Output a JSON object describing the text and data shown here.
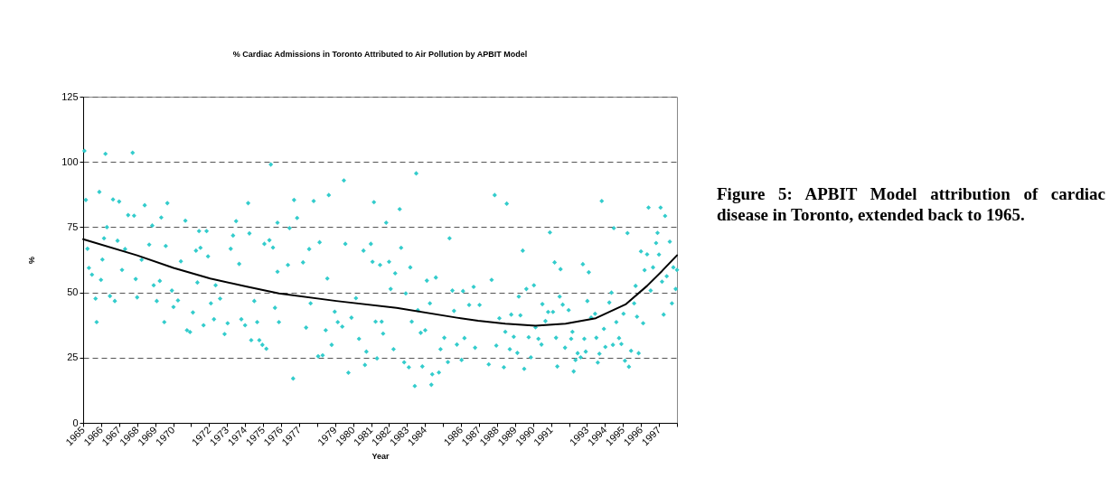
{
  "chart_data": {
    "type": "scatter",
    "title": "% Cardiac Admissions in Toronto Attributed to Air Pollution by APBIT Model",
    "xlabel": "Year",
    "ylabel": "%",
    "xlim": [
      1965,
      1998
    ],
    "ylim": [
      0,
      125
    ],
    "yticks": [
      0,
      25,
      50,
      75,
      100,
      125
    ],
    "xticks": [
      1965,
      1966,
      1967,
      1968,
      1969,
      1970,
      {
        "value": 1971,
        "label": null
      },
      1972,
      1973,
      1974,
      1975,
      1976,
      1977,
      {
        "value": 1978,
        "label": null
      },
      1979,
      1980,
      1981,
      1982,
      1983,
      1984,
      {
        "value": 1985,
        "label": null
      },
      1986,
      1987,
      1988,
      1989,
      1990,
      1991,
      {
        "value": 1992,
        "label": null
      },
      1993,
      1994,
      1995,
      1996,
      1997,
      {
        "value": 1998,
        "label": null
      }
    ],
    "grid": "y",
    "annotations": [
      "Figure 5: APBIT Model attribution of cardiac disease in Toronto, extended back to 1965."
    ],
    "series": [
      {
        "color": "#33cccc",
        "marker": "diamond",
        "x": [
          1965.07,
          1965.15,
          1965.24,
          1965.32,
          1965.49,
          1965.69,
          1965.75,
          1965.9,
          1965.99,
          1966.24,
          1966.32,
          1966.16,
          1966.07,
          1966.49,
          1966.66,
          1966.76,
          1967.0,
          1966.91,
          1967.16,
          1967.33,
          1967.5,
          1967.75,
          1967.83,
          1967.92,
          1968.0,
          1968.25,
          1968.42,
          1968.67,
          1968.84,
          1968.92,
          1969.09,
          1969.26,
          1969.34,
          1969.51,
          1969.59,
          1969.68,
          1969.93,
          1970.02,
          1970.27,
          1970.43,
          1970.68,
          1970.77,
          1970.94,
          1971.1,
          1971.27,
          1971.44,
          1971.52,
          1971.35,
          1971.69,
          1971.86,
          1971.94,
          1972.1,
          1972.27,
          1972.36,
          1972.61,
          1972.86,
          1973.03,
          1973.2,
          1973.33,
          1973.5,
          1973.67,
          1973.79,
          1974.0,
          1974.17,
          1974.24,
          1974.34,
          1974.51,
          1974.67,
          1974.79,
          1974.96,
          1975.18,
          1975.07,
          1975.35,
          1975.43,
          1975.55,
          1975.66,
          1975.8,
          1975.88,
          1975.8,
          1976.47,
          1976.72,
          1976.67,
          1976.89,
          1976.38,
          1977.22,
          1977.56,
          1977.64,
          1977.81,
          1977.39,
          1978.06,
          1978.14,
          1978.31,
          1978.48,
          1978.57,
          1978.65,
          1978.81,
          1978.98,
          1979.15,
          1979.4,
          1979.49,
          1979.57,
          1979.74,
          1979.91,
          1980.16,
          1980.33,
          1980.58,
          1980.66,
          1980.74,
          1980.99,
          1981.16,
          1981.08,
          1981.25,
          1981.33,
          1981.5,
          1981.59,
          1981.67,
          1981.84,
          1982.0,
          1982.09,
          1982.25,
          1982.34,
          1982.59,
          1982.67,
          1982.84,
          1982.93,
          1983.1,
          1983.18,
          1983.26,
          1983.43,
          1983.51,
          1983.6,
          1983.76,
          1983.85,
          1984.01,
          1984.1,
          1984.27,
          1984.35,
          1984.4,
          1984.6,
          1984.77,
          1984.86,
          1985.07,
          1985.27,
          1985.36,
          1985.52,
          1985.61,
          1985.77,
          1986.03,
          1986.11,
          1986.19,
          1986.45,
          1986.7,
          1986.78,
          1987.03,
          1987.54,
          1987.7,
          1987.87,
          1987.96,
          1988.13,
          1988.38,
          1988.46,
          1988.54,
          1988.71,
          1988.79,
          1988.93,
          1989.13,
          1989.21,
          1989.3,
          1989.43,
          1989.51,
          1989.63,
          1989.76,
          1989.88,
          1990.05,
          1990.14,
          1990.3,
          1990.47,
          1990.52,
          1990.69,
          1990.84,
          1990.94,
          1991.11,
          1991.2,
          1991.28,
          1991.35,
          1991.48,
          1991.53,
          1991.65,
          1991.78,
          1991.98,
          1992.12,
          1992.19,
          1992.26,
          1992.36,
          1992.48,
          1992.65,
          1992.77,
          1992.85,
          1992.93,
          1993.02,
          1993.1,
          1993.23,
          1993.45,
          1993.52,
          1993.6,
          1993.69,
          1993.82,
          1993.94,
          1994.02,
          1994.24,
          1994.36,
          1994.44,
          1994.49,
          1994.63,
          1994.78,
          1994.91,
          1995.03,
          1995.11,
          1995.25,
          1995.33,
          1995.45,
          1995.62,
          1995.7,
          1995.78,
          1995.87,
          1996.0,
          1996.12,
          1996.2,
          1996.34,
          1996.42,
          1996.54,
          1996.67,
          1996.84,
          1996.92,
          1997.0,
          1997.09,
          1997.17,
          1997.26,
          1997.34,
          1997.43,
          1997.6,
          1997.72,
          1997.8,
          1997.93,
          1998.0
        ],
        "values": [
          104.2,
          85.4,
          66.7,
          59.4,
          56.8,
          47.6,
          38.6,
          88.5,
          54.8,
          103.1,
          75.0,
          70.7,
          62.6,
          48.6,
          85.6,
          46.7,
          84.8,
          69.8,
          58.6,
          66.6,
          79.6,
          103.5,
          79.4,
          55.1,
          48.1,
          62.5,
          83.4,
          68.3,
          75.6,
          52.7,
          46.7,
          54.4,
          78.7,
          38.6,
          67.8,
          84.2,
          50.7,
          44.4,
          46.9,
          61.9,
          77.5,
          35.5,
          34.8,
          42.3,
          66.0,
          73.5,
          67.1,
          53.8,
          37.4,
          73.5,
          63.8,
          45.8,
          39.7,
          52.7,
          47.6,
          34.0,
          38.2,
          66.7,
          71.8,
          77.3,
          60.9,
          39.7,
          37.4,
          84.2,
          72.6,
          31.7,
          46.7,
          38.6,
          31.7,
          29.9,
          28.4,
          68.6,
          70.0,
          99.0,
          67.2,
          44.1,
          76.7,
          38.6,
          57.9,
          74.6,
          85.4,
          17.0,
          78.5,
          60.5,
          61.5,
          66.6,
          45.8,
          85.0,
          36.5,
          25.5,
          69.2,
          25.9,
          35.5,
          55.3,
          87.3,
          29.9,
          42.6,
          38.6,
          36.9,
          92.9,
          68.6,
          19.2,
          40.3,
          47.8,
          32.2,
          66.0,
          22.2,
          27.3,
          68.6,
          84.6,
          61.7,
          38.8,
          24.7,
          60.5,
          38.8,
          34.2,
          76.7,
          61.7,
          51.3,
          28.2,
          57.3,
          81.9,
          67.1,
          23.2,
          49.6,
          21.3,
          59.6,
          38.8,
          14.1,
          95.6,
          43.2,
          34.5,
          21.6,
          35.5,
          54.5,
          45.8,
          14.6,
          18.6,
          55.7,
          19.3,
          28.2,
          32.6,
          23.3,
          70.7,
          50.7,
          42.9,
          30.0,
          24.1,
          50.5,
          32.5,
          45.2,
          52.1,
          28.8,
          45.2,
          22.4,
          54.8,
          87.3,
          29.6,
          40.1,
          21.3,
          34.9,
          84.0,
          28.2,
          41.5,
          33.0,
          26.8,
          48.4,
          41.2,
          66.0,
          20.7,
          51.3,
          32.8,
          25.1,
          52.7,
          36.6,
          32.2,
          30.0,
          45.5,
          39.0,
          42.5,
          73.0,
          42.5,
          61.5,
          32.6,
          21.6,
          48.4,
          58.9,
          45.3,
          28.8,
          43.2,
          32.2,
          34.9,
          19.7,
          24.1,
          26.7,
          25.1,
          60.8,
          32.2,
          27.3,
          46.7,
          57.7,
          40.3,
          41.8,
          32.6,
          23.1,
          26.5,
          85.0,
          36.0,
          29.1,
          46.1,
          49.9,
          29.9,
          74.6,
          38.6,
          32.5,
          30.2,
          41.8,
          23.8,
          72.7,
          21.5,
          27.6,
          45.8,
          52.5,
          40.7,
          26.7,
          65.7,
          38.2,
          58.5,
          64.6,
          82.5,
          50.7,
          59.6,
          68.9,
          72.8,
          64.5,
          82.5,
          54.1,
          41.5,
          79.3,
          56.2,
          69.4,
          45.8,
          59.6,
          51.3,
          58.6
        ]
      },
      {
        "type": "line",
        "color": "#000000",
        "line_style": "solid",
        "x": [
          1965,
          1968,
          1970.02,
          1972.06,
          1974.1,
          1975.88,
          1979.07,
          1982.42,
          1985.77,
          1986.95,
          1988.46,
          1990.14,
          1991.81,
          1993.49,
          1995.17,
          1996.34,
          1997.17,
          1998
        ],
        "values": [
          70.4,
          64.2,
          59.4,
          55.3,
          52.2,
          49.6,
          46.7,
          44.1,
          40.3,
          39.1,
          38.0,
          37.2,
          38.0,
          40.1,
          45.5,
          52.5,
          58.2,
          64.2
        ]
      }
    ]
  }
}
